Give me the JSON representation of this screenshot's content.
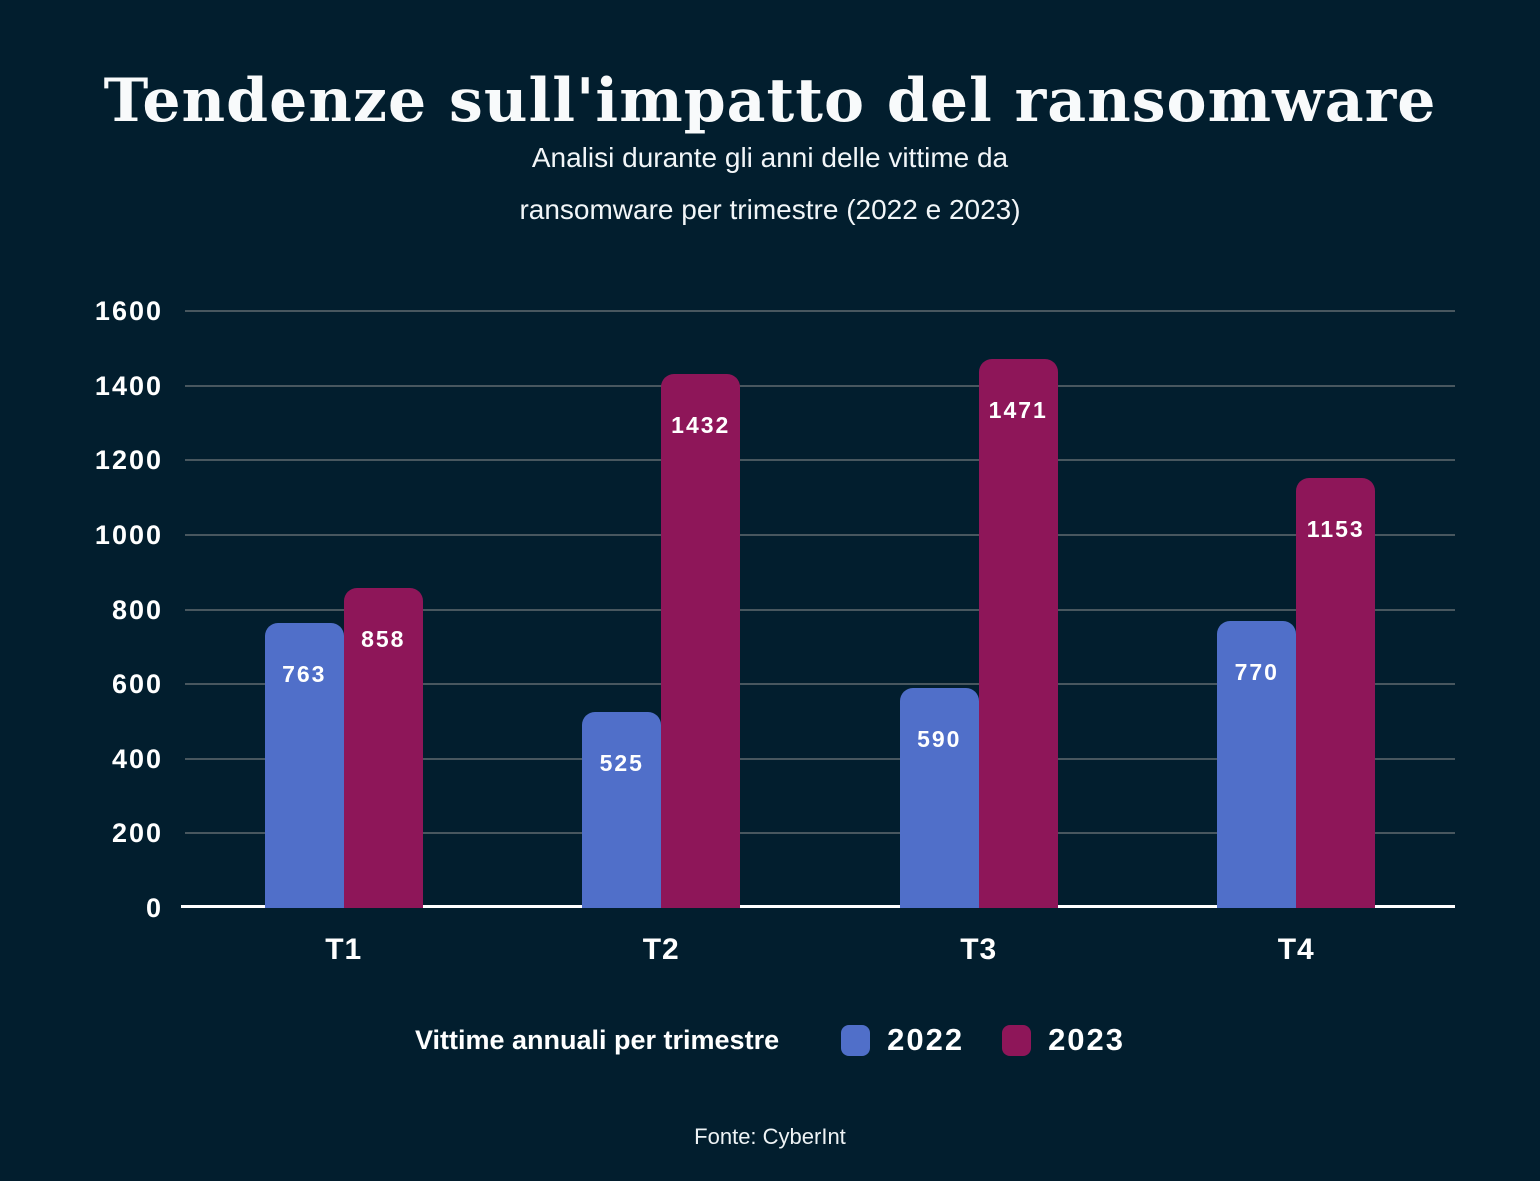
{
  "header": {
    "title": "Tendenze sull'impatto del ransomware",
    "subtitle_line1": "Analisi durante gli anni delle vittime da",
    "subtitle_line2": "ransomware per trimestre (2022 e 2023)"
  },
  "chart_data": {
    "type": "bar",
    "categories": [
      "T1",
      "T2",
      "T3",
      "T4"
    ],
    "series": [
      {
        "name": "2022",
        "color": "#506fc9",
        "values": [
          763,
          525,
          590,
          770
        ]
      },
      {
        "name": "2023",
        "color": "#8e1659",
        "values": [
          858,
          1432,
          1471,
          1153
        ]
      }
    ],
    "title": "Tendenze sull'impatto del ransomware",
    "xlabel": "",
    "ylabel": "",
    "ylim": [
      0,
      1600
    ],
    "yticks": [
      0,
      200,
      400,
      600,
      800,
      1000,
      1200,
      1400,
      1600
    ],
    "grid": true,
    "legend_title": "Vittime annuali per trimestre",
    "legend_position": "bottom"
  },
  "footer": {
    "source": "Fonte: CyberInt"
  },
  "colors": {
    "background": "#021e2e",
    "bar_2022": "#506fc9",
    "bar_2023": "#8e1659",
    "gridline": "#48575f",
    "axis": "#ffffff",
    "text": "#ffffff"
  }
}
